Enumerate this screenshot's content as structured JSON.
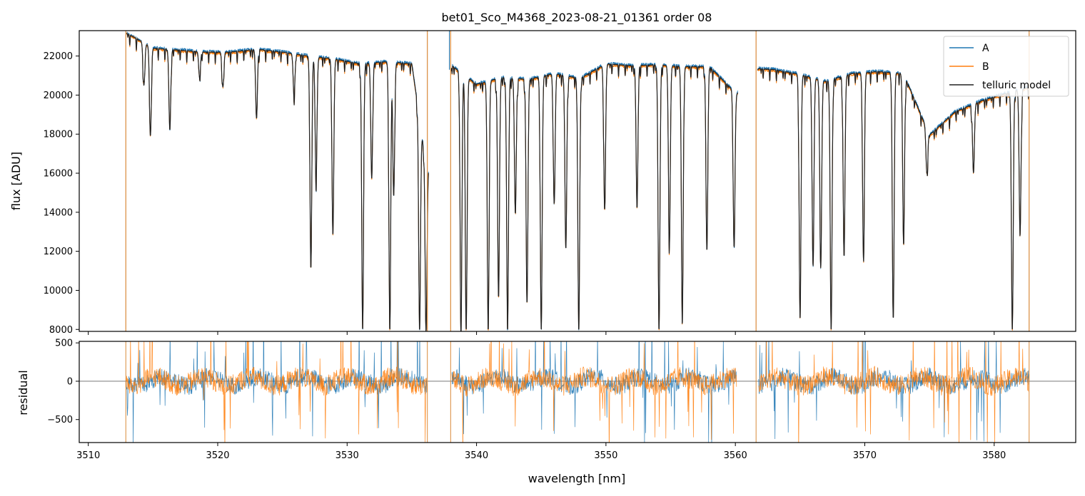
{
  "chart_data": [
    {
      "type": "line",
      "panel": "flux",
      "title": "bet01_Sco_M4368_2023-08-21_01361  order 08",
      "xlabel": "",
      "ylabel": "flux [ADU]",
      "xlim": [
        3509.3,
        3586.3
      ],
      "ylim": [
        7900,
        23300
      ],
      "yticks": [
        8000,
        10000,
        12000,
        14000,
        16000,
        18000,
        20000,
        22000
      ],
      "xticks": [
        3510,
        3520,
        3530,
        3540,
        3550,
        3560,
        3570,
        3580
      ],
      "xtick_labels_shown": false,
      "legend": {
        "position": "top-right",
        "entries": [
          "A",
          "B",
          "telluric model"
        ]
      },
      "series": [
        {
          "name": "A",
          "color": "#1f77b4",
          "x": [
            3512.9,
            3513.5,
            3515,
            3517,
            3519,
            3521,
            3523,
            3525,
            3527,
            3529,
            3531,
            3533,
            3535,
            3536.2,
            3538.1,
            3540,
            3542,
            3544,
            3546,
            3548,
            3550,
            3552,
            3554,
            3556,
            3558,
            3560.1,
            3561.8,
            3563,
            3565,
            3567,
            3569,
            3571,
            3573,
            3575,
            3577,
            3579,
            3581,
            3582.7
          ],
          "values": [
            23200,
            23000,
            22450,
            22350,
            22250,
            22250,
            22400,
            22250,
            22050,
            21900,
            21650,
            21750,
            21650,
            16000,
            21550,
            20600,
            20950,
            20850,
            21150,
            20900,
            21650,
            21550,
            21600,
            21500,
            21500,
            20100,
            21400,
            21350,
            21100,
            20750,
            21150,
            21250,
            21150,
            18000,
            19200,
            19750,
            20150,
            20450
          ]
        },
        {
          "name": "B",
          "color": "#ff7f0e",
          "x": [
            3512.9,
            3513.5,
            3515,
            3517,
            3519,
            3521,
            3523,
            3525,
            3527,
            3529,
            3531,
            3533,
            3535,
            3536.2,
            3538.1,
            3540,
            3542,
            3544,
            3546,
            3548,
            3550,
            3552,
            3554,
            3556,
            3558,
            3560.1,
            3561.8,
            3563,
            3565,
            3567,
            3569,
            3571,
            3573,
            3575,
            3577,
            3579,
            3581,
            3582.7
          ],
          "values": [
            23150,
            22950,
            22350,
            22250,
            22150,
            22150,
            22300,
            22150,
            21950,
            21800,
            21550,
            21650,
            21550,
            15900,
            21450,
            20500,
            20850,
            20750,
            21050,
            20800,
            21550,
            21450,
            21500,
            21400,
            21400,
            20000,
            21300,
            21250,
            21000,
            20650,
            21050,
            21150,
            21050,
            17900,
            19100,
            19650,
            20050,
            20350
          ]
        },
        {
          "name": "telluric model",
          "color": "#222222",
          "x": [
            3512.9,
            3513.5,
            3515,
            3517,
            3519,
            3521,
            3523,
            3525,
            3527,
            3529,
            3531,
            3533,
            3535,
            3536.2,
            3538.1,
            3540,
            3542,
            3544,
            3546,
            3548,
            3550,
            3552,
            3554,
            3556,
            3558,
            3560.1,
            3561.8,
            3563,
            3565,
            3567,
            3569,
            3571,
            3573,
            3575,
            3577,
            3579,
            3581,
            3582.7
          ],
          "values": [
            23170,
            22970,
            22400,
            22300,
            22200,
            22200,
            22350,
            22200,
            22000,
            21850,
            21600,
            21700,
            21600,
            15950,
            21500,
            20550,
            20900,
            20800,
            21100,
            20850,
            21600,
            21500,
            21550,
            21450,
            21450,
            20050,
            21350,
            21300,
            21050,
            20700,
            21100,
            21200,
            21100,
            17950,
            19150,
            19700,
            20100,
            20400
          ]
        }
      ],
      "absorption_lines": [
        {
          "x": 3514.3,
          "depth": 20500
        },
        {
          "x": 3514.8,
          "depth": 17900
        },
        {
          "x": 3516.3,
          "depth": 18200
        },
        {
          "x": 3518.6,
          "depth": 20900
        },
        {
          "x": 3520.4,
          "depth": 20400
        },
        {
          "x": 3523.0,
          "depth": 18800
        },
        {
          "x": 3525.9,
          "depth": 20000
        },
        {
          "x": 3527.2,
          "depth": 11100
        },
        {
          "x": 3527.6,
          "depth": 15600
        },
        {
          "x": 3528.9,
          "depth": 12800
        },
        {
          "x": 3531.2,
          "depth": 7900
        },
        {
          "x": 3531.9,
          "depth": 15700
        },
        {
          "x": 3533.3,
          "depth": 7900
        },
        {
          "x": 3533.6,
          "depth": 14800
        },
        {
          "x": 3535.6,
          "depth": 7900
        },
        {
          "x": 3536.1,
          "depth": 7900
        },
        {
          "x": 3538.8,
          "depth": 7900
        },
        {
          "x": 3539.2,
          "depth": 7900
        },
        {
          "x": 3540.9,
          "depth": 7900
        },
        {
          "x": 3541.7,
          "depth": 9600
        },
        {
          "x": 3542.4,
          "depth": 7900
        },
        {
          "x": 3543.0,
          "depth": 13900
        },
        {
          "x": 3543.9,
          "depth": 9300
        },
        {
          "x": 3545.0,
          "depth": 7900
        },
        {
          "x": 3546.0,
          "depth": 14400
        },
        {
          "x": 3546.9,
          "depth": 12100
        },
        {
          "x": 3547.9,
          "depth": 7900
        },
        {
          "x": 3549.9,
          "depth": 14100
        },
        {
          "x": 3552.4,
          "depth": 14200
        },
        {
          "x": 3554.1,
          "depth": 7900
        },
        {
          "x": 3554.9,
          "depth": 12200
        },
        {
          "x": 3555.9,
          "depth": 8500
        },
        {
          "x": 3557.8,
          "depth": 12000
        },
        {
          "x": 3559.9,
          "depth": 12200
        },
        {
          "x": 3560.9,
          "depth": 15900
        },
        {
          "x": 3565.0,
          "depth": 8500
        },
        {
          "x": 3566.0,
          "depth": 11300
        },
        {
          "x": 3566.6,
          "depth": 11200
        },
        {
          "x": 3567.4,
          "depth": 7900
        },
        {
          "x": 3568.4,
          "depth": 11700
        },
        {
          "x": 3569.9,
          "depth": 11600
        },
        {
          "x": 3572.2,
          "depth": 8500
        },
        {
          "x": 3573.0,
          "depth": 12300
        },
        {
          "x": 3574.8,
          "depth": 16000
        },
        {
          "x": 3578.4,
          "depth": 16000
        },
        {
          "x": 3581.4,
          "depth": 7900
        },
        {
          "x": 3582.0,
          "depth": 12800
        }
      ],
      "spikes": [
        3512.9,
        3536.2,
        3538.0,
        3561.6,
        3582.7
      ]
    },
    {
      "type": "line",
      "panel": "residual",
      "title": "",
      "xlabel": "wavelength [nm]",
      "ylabel": "residual",
      "xlim": [
        3509.3,
        3586.3
      ],
      "ylim": [
        -800,
        520
      ],
      "yticks": [
        -500,
        0,
        500
      ],
      "ytick_labels": [
        "−500",
        "0",
        "500"
      ],
      "xticks": [
        3510,
        3520,
        3530,
        3540,
        3550,
        3560,
        3570,
        3580
      ],
      "xtick_labels": [
        "3510",
        "3520",
        "3530",
        "3540",
        "3550",
        "3560",
        "3570",
        "3580"
      ],
      "zero_line": 0,
      "segments": [
        [
          3512.9,
          3536.2
        ],
        [
          3538.1,
          3560.1
        ],
        [
          3561.8,
          3582.7
        ]
      ],
      "series": [
        {
          "name": "A",
          "color": "#1f77b4",
          "noise_amplitude": 150
        },
        {
          "name": "B",
          "color": "#ff7f0e",
          "noise_amplitude": 170
        }
      ]
    }
  ]
}
